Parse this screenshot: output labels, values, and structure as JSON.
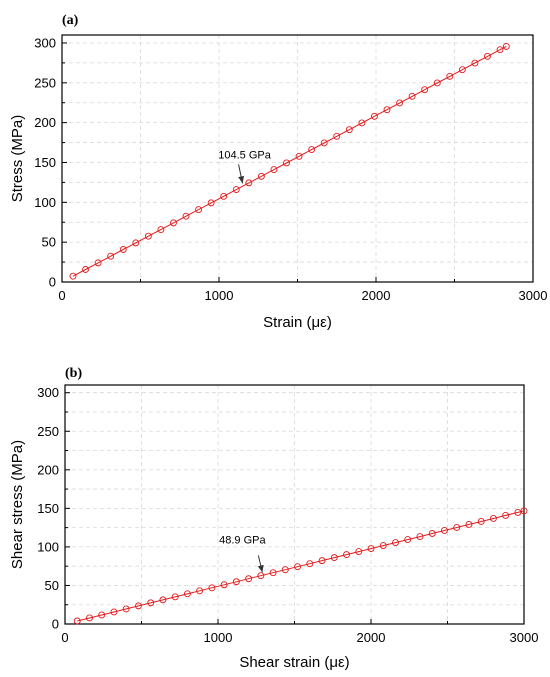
{
  "chart_data": [
    {
      "type": "line",
      "panel_label": "(a)",
      "xlabel": "Strain (με)",
      "ylabel": "Stress (MPa)",
      "xlim": [
        0,
        3000
      ],
      "ylim": [
        0,
        310
      ],
      "xticks": [
        0,
        1000,
        2000,
        3000
      ],
      "yticks": [
        0,
        50,
        100,
        150,
        200,
        250,
        300
      ],
      "grid": true,
      "annotation": {
        "text": "104.5 GPa",
        "x": 1150,
        "y": 120
      },
      "series": [
        {
          "marker": "open-circle",
          "color": "#e41a1c",
          "x": [
            70,
            150,
            230,
            310,
            390,
            470,
            550,
            630,
            710,
            790,
            870,
            950,
            1030,
            1110,
            1190,
            1270,
            1350,
            1430,
            1510,
            1590,
            1670,
            1750,
            1830,
            1910,
            1990,
            2070,
            2150,
            2230,
            2310,
            2390,
            2470,
            2550,
            2630,
            2710,
            2790,
            2830
          ],
          "y": [
            7.3,
            15.7,
            24.0,
            32.4,
            40.8,
            49.1,
            57.5,
            65.8,
            74.2,
            82.6,
            90.9,
            99.3,
            107.6,
            116.0,
            124.4,
            132.7,
            141.1,
            149.4,
            157.8,
            166.2,
            174.5,
            182.9,
            191.2,
            199.6,
            208.0,
            216.3,
            224.7,
            233.0,
            241.4,
            249.8,
            258.1,
            266.5,
            274.8,
            283.2,
            291.6,
            295.7
          ]
        }
      ]
    },
    {
      "type": "line",
      "panel_label": "(b)",
      "xlabel": "Shear strain (με)",
      "ylabel": "Shear stress (MPa)",
      "xlim": [
        0,
        3000
      ],
      "ylim": [
        0,
        310
      ],
      "xticks": [
        0,
        1000,
        2000,
        3000
      ],
      "yticks": [
        0,
        50,
        100,
        150,
        200,
        250,
        300
      ],
      "grid": true,
      "annotation": {
        "text": "48.9 GPa",
        "x": 1290,
        "y": 63
      },
      "series": [
        {
          "marker": "open-circle",
          "color": "#e41a1c",
          "x": [
            80,
            160,
            240,
            320,
            400,
            480,
            560,
            640,
            720,
            800,
            880,
            960,
            1040,
            1120,
            1200,
            1280,
            1360,
            1440,
            1520,
            1600,
            1680,
            1760,
            1840,
            1920,
            2000,
            2080,
            2160,
            2240,
            2320,
            2400,
            2480,
            2560,
            2640,
            2720,
            2800,
            2880,
            2960,
            3000
          ],
          "y": [
            3.9,
            7.8,
            11.7,
            15.6,
            19.6,
            23.5,
            27.4,
            31.3,
            35.2,
            39.1,
            43.0,
            46.9,
            50.9,
            54.8,
            58.7,
            62.6,
            66.5,
            70.4,
            74.3,
            78.2,
            82.2,
            86.1,
            90.0,
            93.9,
            97.8,
            101.7,
            105.6,
            109.5,
            113.4,
            117.4,
            121.3,
            125.2,
            129.1,
            133.0,
            136.9,
            140.8,
            144.7,
            146.7
          ]
        }
      ]
    }
  ]
}
